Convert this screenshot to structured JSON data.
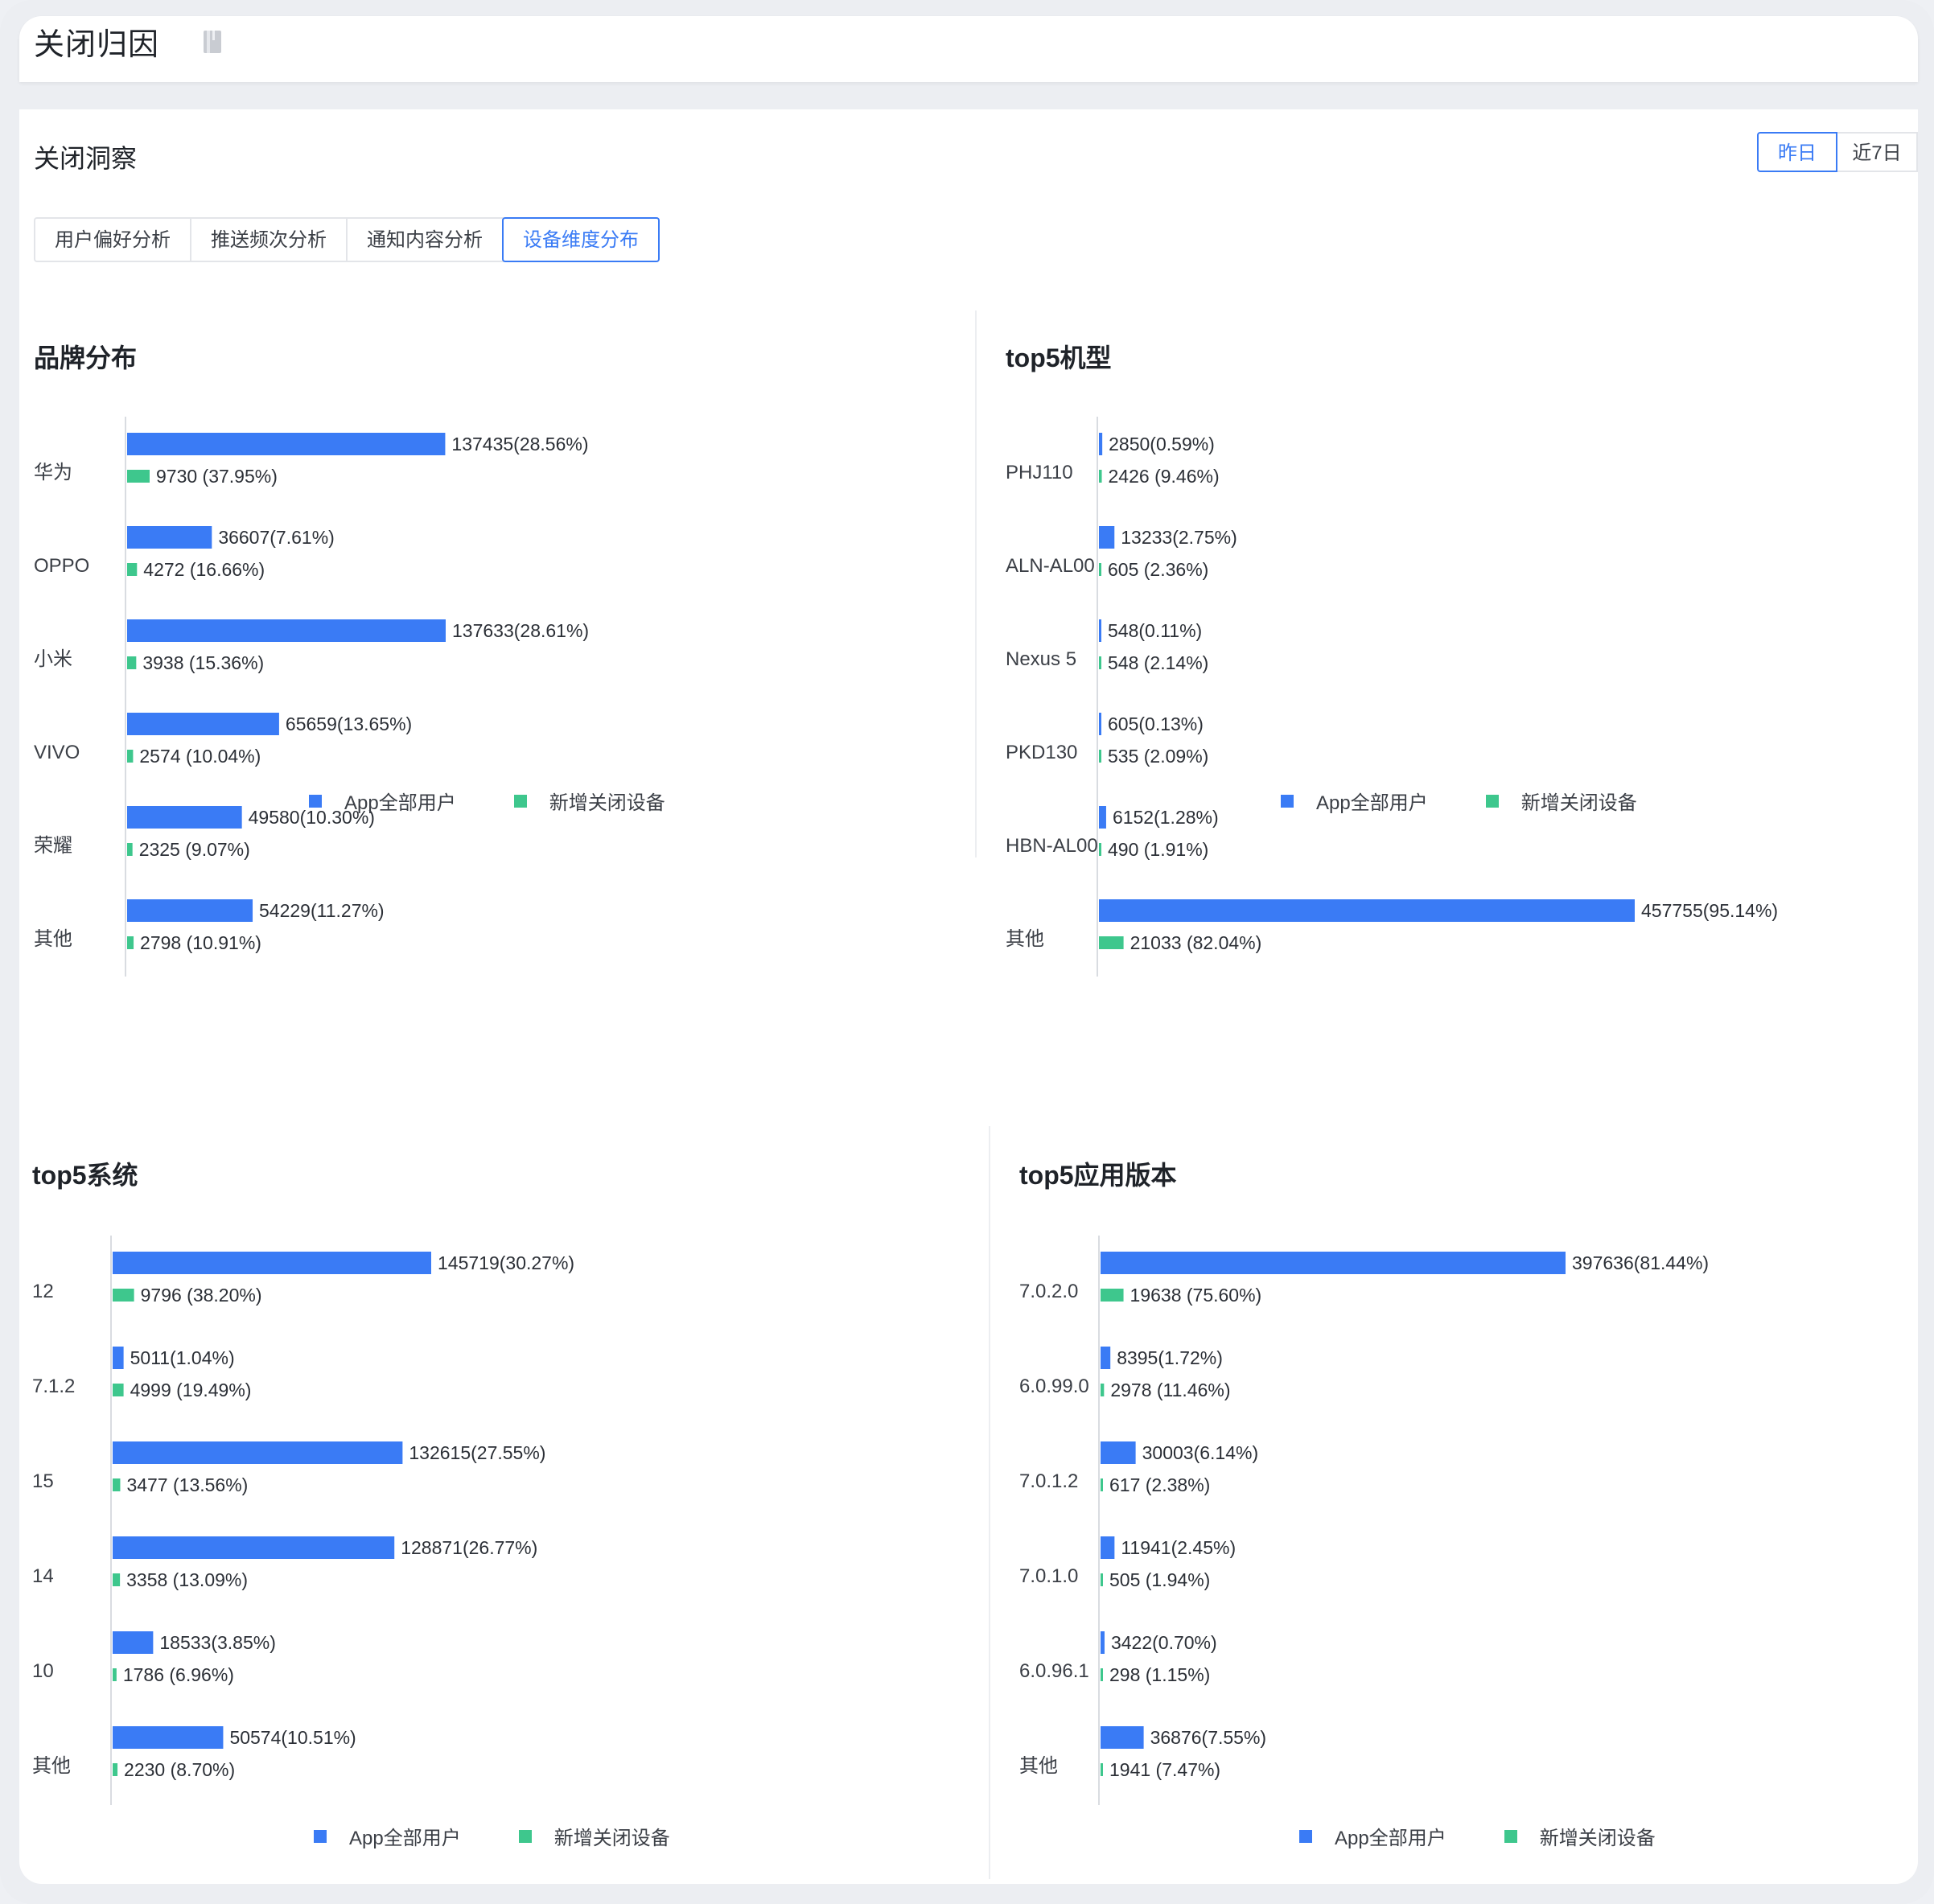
{
  "header": {
    "title": "关闭归因",
    "title_icon": "document-icon"
  },
  "section": {
    "title": "关闭洞察"
  },
  "range_buttons": [
    {
      "label": "昨日",
      "active": true
    },
    {
      "label": "近7日",
      "active": false
    }
  ],
  "tabs": [
    {
      "label": "用户偏好分析",
      "active": false
    },
    {
      "label": "推送频次分析",
      "active": false
    },
    {
      "label": "通知内容分析",
      "active": false
    },
    {
      "label": "设备维度分布",
      "active": true
    }
  ],
  "colors": {
    "series_all": "#3a7bf5",
    "series_new": "#3ec78d",
    "accent": "#3a7bf5"
  },
  "chart_data": [
    {
      "id": "brand",
      "type": "bar",
      "orientation": "horizontal",
      "title": "品牌分布",
      "categories": [
        "华为",
        "OPPO",
        "小米",
        "VIVO",
        "荣耀",
        "其他"
      ],
      "series": [
        {
          "name": "App全部用户",
          "values": [
            137435,
            36607,
            137633,
            65659,
            49580,
            54229
          ],
          "labels": [
            "137435(28.56%)",
            "36607(7.61%)",
            "137633(28.61%)",
            "65659(13.65%)",
            "49580(10.30%)",
            "54229(11.27%)"
          ]
        },
        {
          "name": "新增关闭设备",
          "values": [
            9730,
            4272,
            3938,
            2574,
            2325,
            2798
          ],
          "labels": [
            "9730 (37.95%)",
            "4272 (16.66%)",
            "3938 (15.36%)",
            "2574 (10.04%)",
            "2325 (9.07%)",
            "2798 (10.91%)"
          ]
        }
      ],
      "legend_position": "bottom"
    },
    {
      "id": "model",
      "type": "bar",
      "orientation": "horizontal",
      "title": "top5机型",
      "categories": [
        "PHJ110",
        "ALN-AL00",
        "Nexus 5",
        "PKD130",
        "HBN-AL00",
        "其他"
      ],
      "series": [
        {
          "name": "App全部用户",
          "values": [
            2850,
            13233,
            548,
            605,
            6152,
            457755
          ],
          "labels": [
            "2850(0.59%)",
            "13233(2.75%)",
            "548(0.11%)",
            "605(0.13%)",
            "6152(1.28%)",
            "457755(95.14%)"
          ]
        },
        {
          "name": "新增关闭设备",
          "values": [
            2426,
            605,
            548,
            535,
            490,
            21033
          ],
          "labels": [
            "2426 (9.46%)",
            "605 (2.36%)",
            "548 (2.14%)",
            "535 (2.09%)",
            "490 (1.91%)",
            "21033 (82.04%)"
          ]
        }
      ],
      "legend_position": "bottom"
    },
    {
      "id": "os",
      "type": "bar",
      "orientation": "horizontal",
      "title": "top5系统",
      "categories": [
        "12",
        "7.1.2",
        "15",
        "14",
        "10",
        "其他"
      ],
      "series": [
        {
          "name": "App全部用户",
          "values": [
            145719,
            5011,
            132615,
            128871,
            18533,
            50574
          ],
          "labels": [
            "145719(30.27%)",
            "5011(1.04%)",
            "132615(27.55%)",
            "128871(26.77%)",
            "18533(3.85%)",
            "50574(10.51%)"
          ]
        },
        {
          "name": "新增关闭设备",
          "values": [
            9796,
            4999,
            3477,
            3358,
            1786,
            2230
          ],
          "labels": [
            "9796 (38.20%)",
            "4999 (19.49%)",
            "3477 (13.56%)",
            "3358 (13.09%)",
            "1786 (6.96%)",
            "2230 (8.70%)"
          ]
        }
      ],
      "legend_position": "bottom"
    },
    {
      "id": "version",
      "type": "bar",
      "orientation": "horizontal",
      "title": "top5应用版本",
      "categories": [
        "7.0.2.0",
        "6.0.99.0",
        "7.0.1.2",
        "7.0.1.0",
        "6.0.96.1",
        "其他"
      ],
      "series": [
        {
          "name": "App全部用户",
          "values": [
            397636,
            8395,
            30003,
            11941,
            3422,
            36876
          ],
          "labels": [
            "397636(81.44%)",
            "8395(1.72%)",
            "30003(6.14%)",
            "11941(2.45%)",
            "3422(0.70%)",
            "36876(7.55%)"
          ]
        },
        {
          "name": "新增关闭设备",
          "values": [
            19638,
            2978,
            617,
            505,
            298,
            1941
          ],
          "labels": [
            "19638 (75.60%)",
            "2978 (11.46%)",
            "617 (2.38%)",
            "505 (1.94%)",
            "298 (1.15%)",
            "1941 (7.47%)"
          ]
        }
      ],
      "legend_position": "bottom"
    }
  ]
}
